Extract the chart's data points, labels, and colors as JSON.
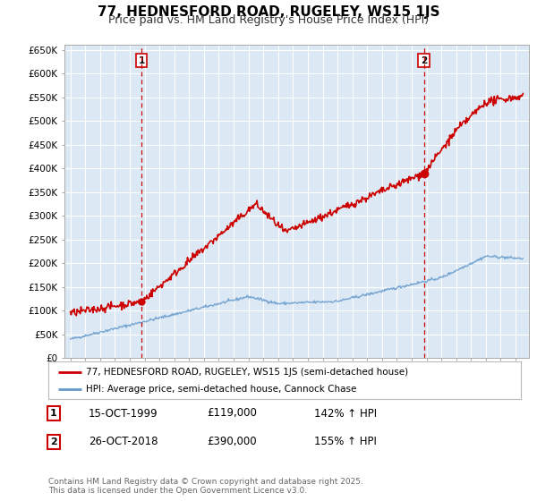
{
  "title": "77, HEDNESFORD ROAD, RUGELEY, WS15 1JS",
  "subtitle": "Price paid vs. HM Land Registry's House Price Index (HPI)",
  "legend_line1": "77, HEDNESFORD ROAD, RUGELEY, WS15 1JS (semi-detached house)",
  "legend_line2": "HPI: Average price, semi-detached house, Cannock Chase",
  "footnote": "Contains HM Land Registry data © Crown copyright and database right 2025.\nThis data is licensed under the Open Government Licence v3.0.",
  "marker1_label": "1",
  "marker1_date": "15-OCT-1999",
  "marker1_price": "£119,000",
  "marker1_hpi": "142% ↑ HPI",
  "marker1_year": 1999.79,
  "marker1_value": 119000,
  "marker2_label": "2",
  "marker2_date": "26-OCT-2018",
  "marker2_price": "£390,000",
  "marker2_hpi": "155% ↑ HPI",
  "marker2_year": 2018.82,
  "marker2_value": 390000,
  "ylim": [
    0,
    660000
  ],
  "yticks": [
    0,
    50000,
    100000,
    150000,
    200000,
    250000,
    300000,
    350000,
    400000,
    450000,
    500000,
    550000,
    600000,
    650000
  ],
  "ytick_labels": [
    "£0",
    "£50K",
    "£100K",
    "£150K",
    "£200K",
    "£250K",
    "£300K",
    "£350K",
    "£400K",
    "£450K",
    "£500K",
    "£550K",
    "£600K",
    "£650K"
  ],
  "red_color": "#cc0000",
  "blue_color": "#6699cc",
  "chart_bg": "#dce9f5",
  "background_color": "#ffffff",
  "grid_color": "#ffffff",
  "title_fontsize": 11,
  "subtitle_fontsize": 9
}
